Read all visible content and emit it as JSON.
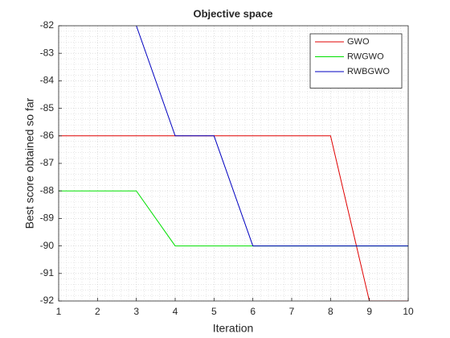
{
  "chart_data": {
    "type": "line",
    "title": "Objective space",
    "xlabel": "Iteration",
    "ylabel": "Best score obtained so far",
    "x": [
      1,
      2,
      3,
      4,
      5,
      6,
      7,
      8,
      9,
      10
    ],
    "series": [
      {
        "name": "GWO",
        "color": "#e00000",
        "values": [
          -86,
          -86,
          -86,
          -86,
          -86,
          -86,
          -86,
          -86,
          -92,
          -92
        ]
      },
      {
        "name": "RWGWO",
        "color": "#00e000",
        "values": [
          -88,
          -88,
          -88,
          -90,
          -90,
          -90,
          -90,
          -90,
          -90,
          -90
        ]
      },
      {
        "name": "RWBGWO",
        "color": "#0000c0",
        "values": [
          null,
          null,
          -82,
          -86,
          -86,
          -90,
          -90,
          -90,
          -90,
          -90
        ]
      }
    ],
    "xlim": [
      1,
      10
    ],
    "xticks": [
      1,
      2,
      3,
      4,
      5,
      6,
      7,
      8,
      9,
      10
    ],
    "ylim": [
      -92,
      -82
    ],
    "yticks": [
      -92,
      -91,
      -90,
      -89,
      -88,
      -87,
      -86,
      -85,
      -84,
      -83,
      -82
    ],
    "grid": true,
    "minor_grid": true,
    "legend": "northeast"
  }
}
